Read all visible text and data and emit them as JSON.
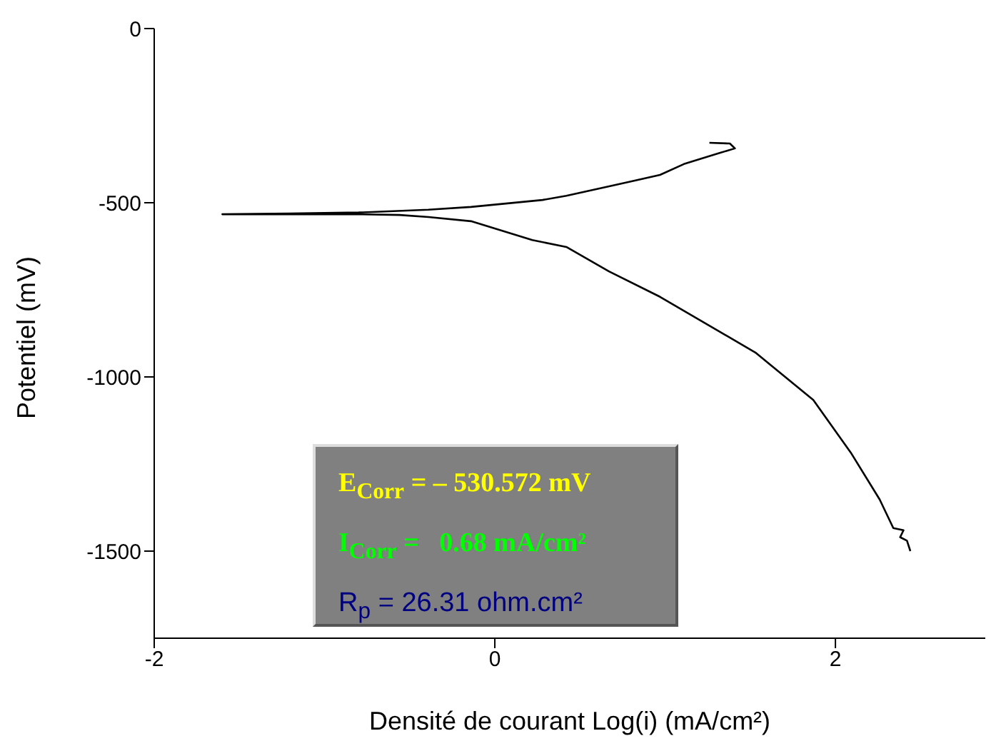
{
  "chart_data": {
    "type": "line",
    "xlabel": "Densité de courant Log(i) (mA/cm²)",
    "ylabel": "Potentiel (mV)",
    "xlim": [
      -2,
      2.88
    ],
    "ylim": [
      -1750,
      0
    ],
    "xticks": [
      -2,
      0,
      2
    ],
    "yticks": [
      0,
      -500,
      -1000,
      -1500
    ],
    "grid": false,
    "marker": "none",
    "line_style": "solid",
    "series": [
      {
        "color": "#000000",
        "x": [
          1.26,
          1.38,
          1.41,
          1.32,
          1.11,
          0.97,
          0.69,
          0.42,
          0.28,
          -0.14,
          -0.39,
          -0.8,
          -1.2,
          -1.6,
          -1.2,
          -0.8,
          -0.56,
          -0.39,
          -0.14,
          0.22,
          0.42,
          0.67,
          0.97,
          1.53,
          1.87,
          2.09,
          2.26,
          2.34,
          2.4,
          2.38,
          2.42,
          2.44
        ],
        "values": [
          -328,
          -330,
          -344,
          -357,
          -389,
          -420,
          -451,
          -480,
          -492,
          -512,
          -520,
          -528,
          -531,
          -533,
          -533,
          -533,
          -535,
          -541,
          -553,
          -607,
          -627,
          -697,
          -770,
          -930,
          -1066,
          -1217,
          -1352,
          -1434,
          -1440,
          -1460,
          -1470,
          -1500
        ]
      }
    ],
    "annotations": [
      "E$_{Corr}$ = – 530.572 mV",
      "I$_{Corr}$ =   0.68 mA/cm²",
      "R$_{p}$ = 26.31 ohm.cm²"
    ]
  }
}
